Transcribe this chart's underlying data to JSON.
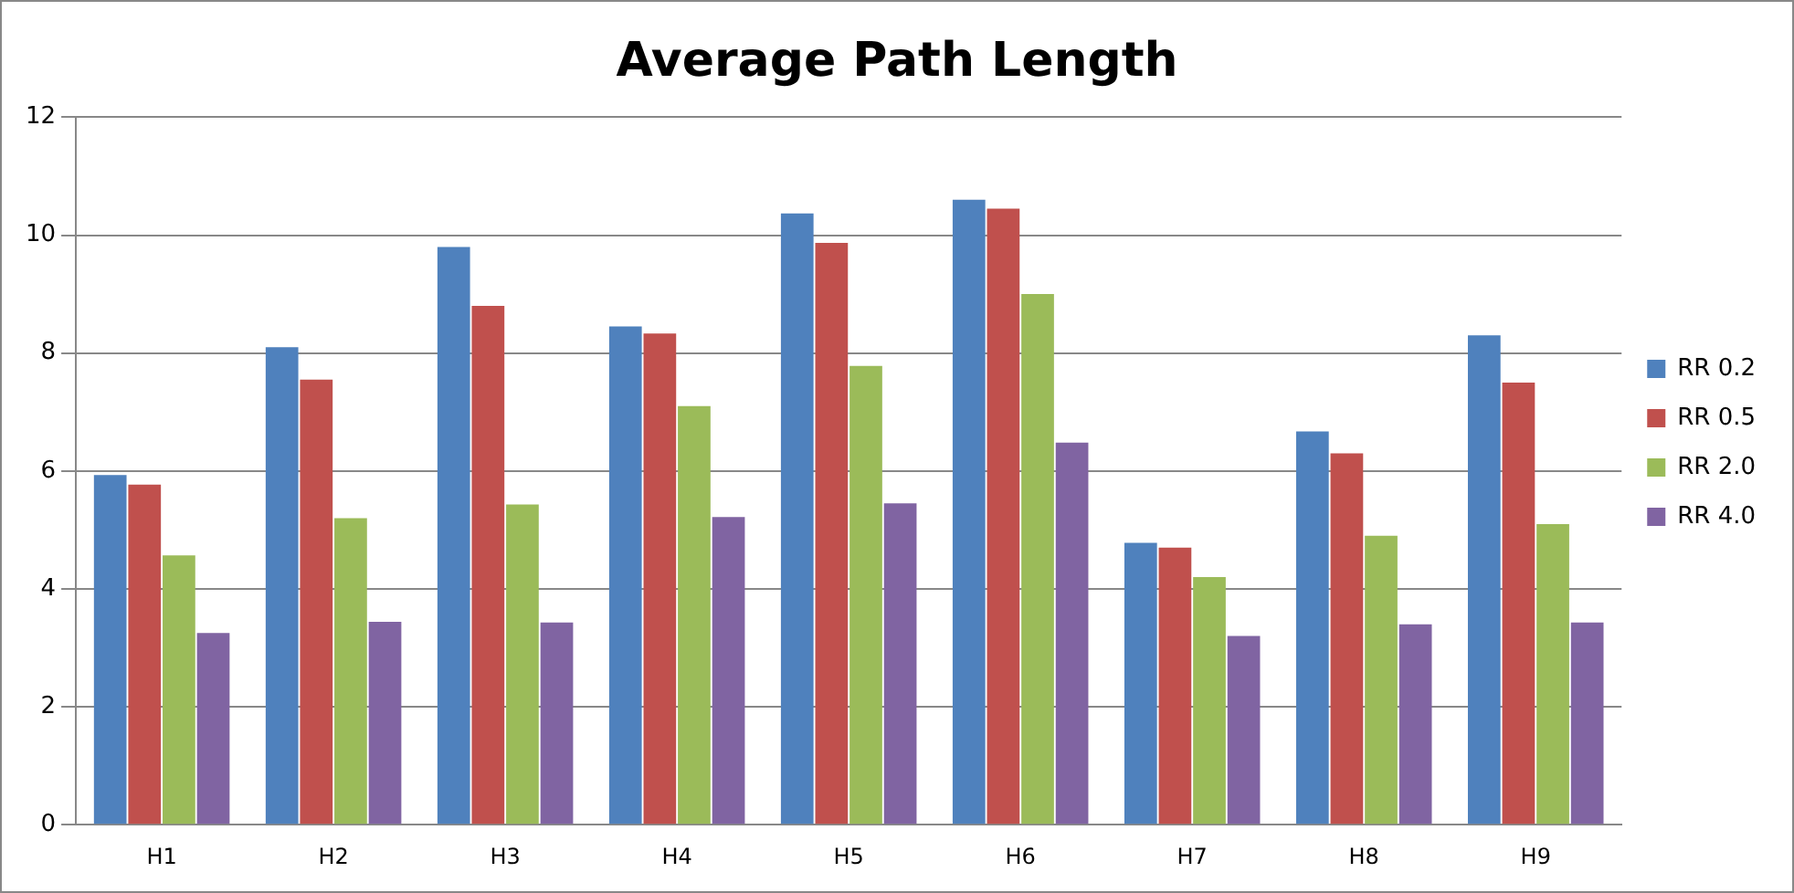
{
  "chart_data": {
    "type": "bar",
    "title": "Average Path Length",
    "categories": [
      "H1",
      "H2",
      "H3",
      "H4",
      "H5",
      "H6",
      "H7",
      "H8",
      "H9"
    ],
    "series": [
      {
        "name": "RR 0.2",
        "color": "#4f81bd",
        "values": [
          5.93,
          8.1,
          9.8,
          8.45,
          10.37,
          10.6,
          4.78,
          6.67,
          8.3
        ]
      },
      {
        "name": "RR 0.5",
        "color": "#c0504d",
        "values": [
          5.77,
          7.55,
          8.8,
          8.33,
          9.87,
          10.45,
          4.7,
          6.3,
          7.5
        ]
      },
      {
        "name": "RR 2.0",
        "color": "#9bbb59",
        "values": [
          4.57,
          5.2,
          5.43,
          7.1,
          7.78,
          9.0,
          4.2,
          4.9,
          5.1
        ]
      },
      {
        "name": "RR 4.0",
        "color": "#8064a2",
        "values": [
          3.25,
          3.44,
          3.43,
          5.22,
          5.45,
          6.48,
          3.2,
          3.4,
          3.43
        ]
      }
    ],
    "ylim": [
      0,
      12
    ],
    "yticks": [
      0,
      2,
      4,
      6,
      8,
      10,
      12
    ],
    "grid": "y",
    "legend": "right"
  }
}
